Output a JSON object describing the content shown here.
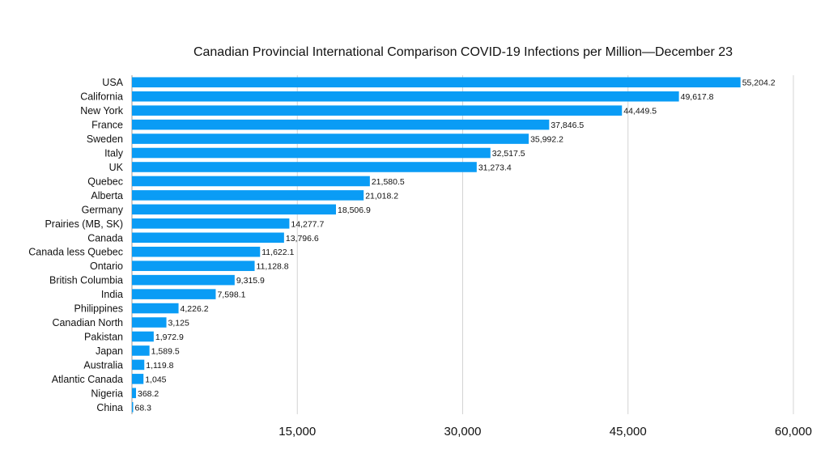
{
  "chart_data": {
    "type": "bar",
    "orientation": "horizontal",
    "title": "Canadian Provincial International Comparison COVID-19 Infections per Million—December 23",
    "xlabel": "",
    "ylabel": "",
    "xlim": [
      0,
      60000
    ],
    "ticks": [
      15000,
      30000,
      45000,
      60000
    ],
    "tick_labels": [
      "15,000",
      "30,000",
      "45,000",
      "60,000"
    ],
    "grid": true,
    "bar_color": "#0a9cf5",
    "categories": [
      "USA",
      "California",
      "New York",
      "France",
      "Sweden",
      "Italy",
      "UK",
      "Quebec",
      "Alberta",
      "Germany",
      "Prairies (MB, SK)",
      "Canada",
      "Canada less Quebec",
      "Ontario",
      "British Columbia",
      "India",
      "Philippines",
      "Canadian North",
      "Pakistan",
      "Japan",
      "Australia",
      "Atlantic Canada",
      "Nigeria",
      "China"
    ],
    "values": [
      55204.2,
      49617.8,
      44449.5,
      37846.5,
      35992.2,
      32517.5,
      31273.4,
      21580.5,
      21018.2,
      18506.9,
      14277.7,
      13796.6,
      11622.1,
      11128.8,
      9315.9,
      7598.1,
      4226.2,
      3125,
      1972.9,
      1589.5,
      1119.8,
      1045,
      368.2,
      68.3
    ],
    "value_labels": [
      "55,204.2",
      "49,617.8",
      "44,449.5",
      "37,846.5",
      "35,992.2",
      "32,517.5",
      "31,273.4",
      "21,580.5",
      "21,018.2",
      "18,506.9",
      "14,277.7",
      "13,796.6",
      "11,622.1",
      "11,128.8",
      "9,315.9",
      "7,598.1",
      "4,226.2",
      "3,125",
      "1,972.9",
      "1,589.5",
      "1,119.8",
      "1,045",
      "368.2",
      "68.3"
    ]
  }
}
